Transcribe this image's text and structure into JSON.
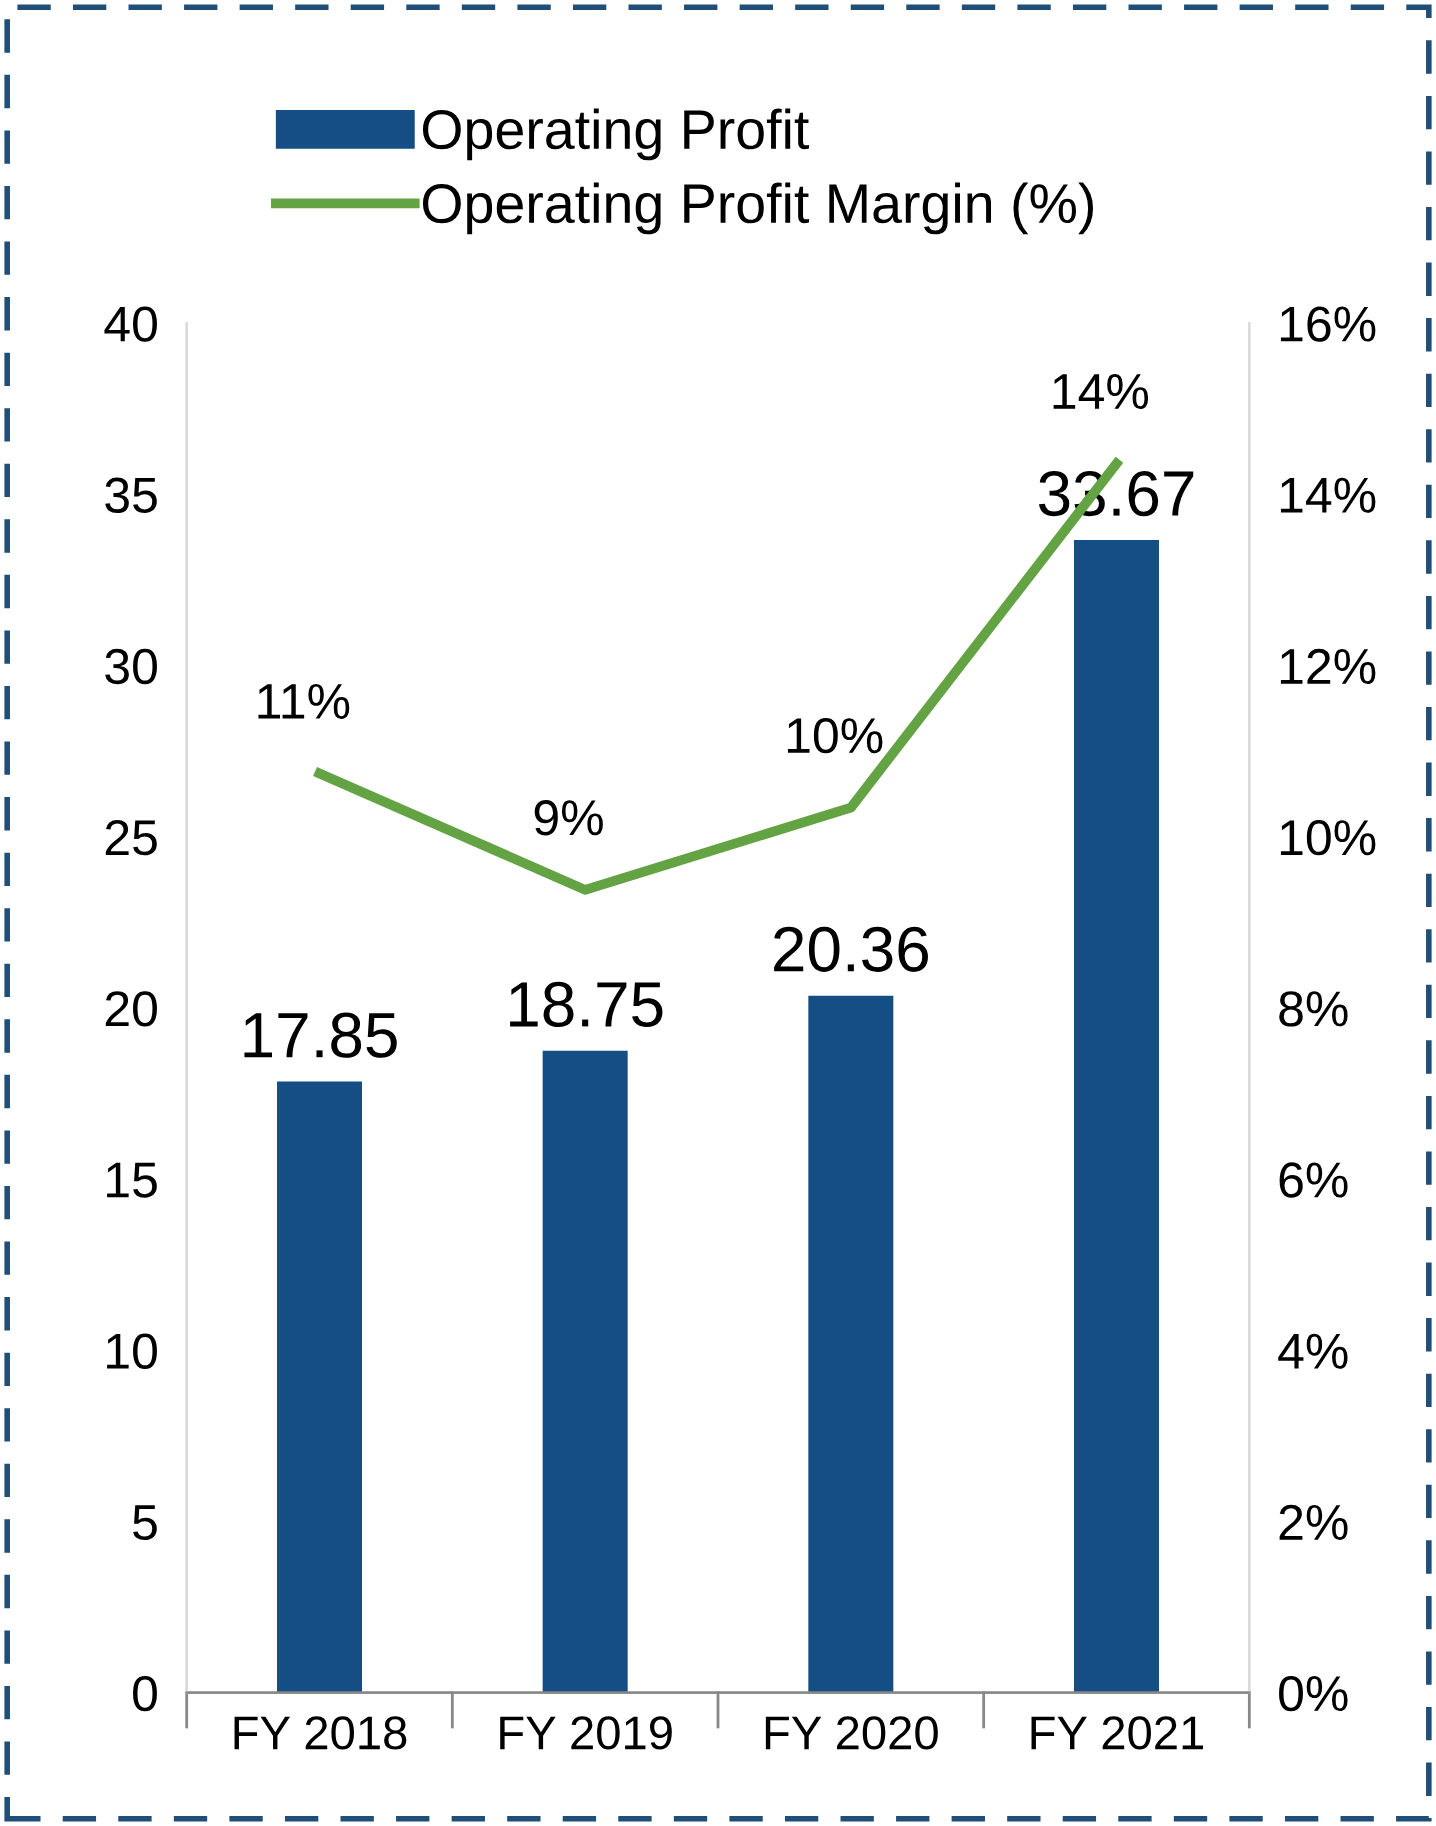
{
  "chart_data": {
    "type": "bar",
    "categories": [
      "FY 2018",
      "FY 2019",
      "FY 2020",
      "FY 2021"
    ],
    "series": [
      {
        "name": "Operating Profit",
        "color": "#154e85",
        "values": [
          17.85,
          18.75,
          20.36,
          33.67
        ]
      },
      {
        "name": "Operating Profit Margin (%)",
        "type": "line",
        "axis": "y2",
        "color": "#63a344",
        "values": [
          10.74,
          9.38,
          10.34,
          14.36
        ],
        "value_labels": [
          "11%",
          "9%",
          "10%",
          "14%"
        ]
      }
    ],
    "data_labels": true,
    "ylim": [
      0,
      40
    ],
    "yticks": [
      0,
      5,
      10,
      15,
      20,
      25,
      30,
      35,
      40
    ],
    "y2lim": [
      0,
      16
    ],
    "y2ticks": [
      {
        "value": 0,
        "label": "0%"
      },
      {
        "value": 2,
        "label": "2%"
      },
      {
        "value": 4,
        "label": "4%"
      },
      {
        "value": 6,
        "label": "6%"
      },
      {
        "value": 8,
        "label": "8%"
      },
      {
        "value": 10,
        "label": "10%"
      },
      {
        "value": 12,
        "label": "12%"
      },
      {
        "value": 14,
        "label": "14%"
      },
      {
        "value": 16,
        "label": "16%"
      }
    ],
    "grid": false,
    "legend": "top",
    "marker": "none",
    "line_style": "solid"
  }
}
